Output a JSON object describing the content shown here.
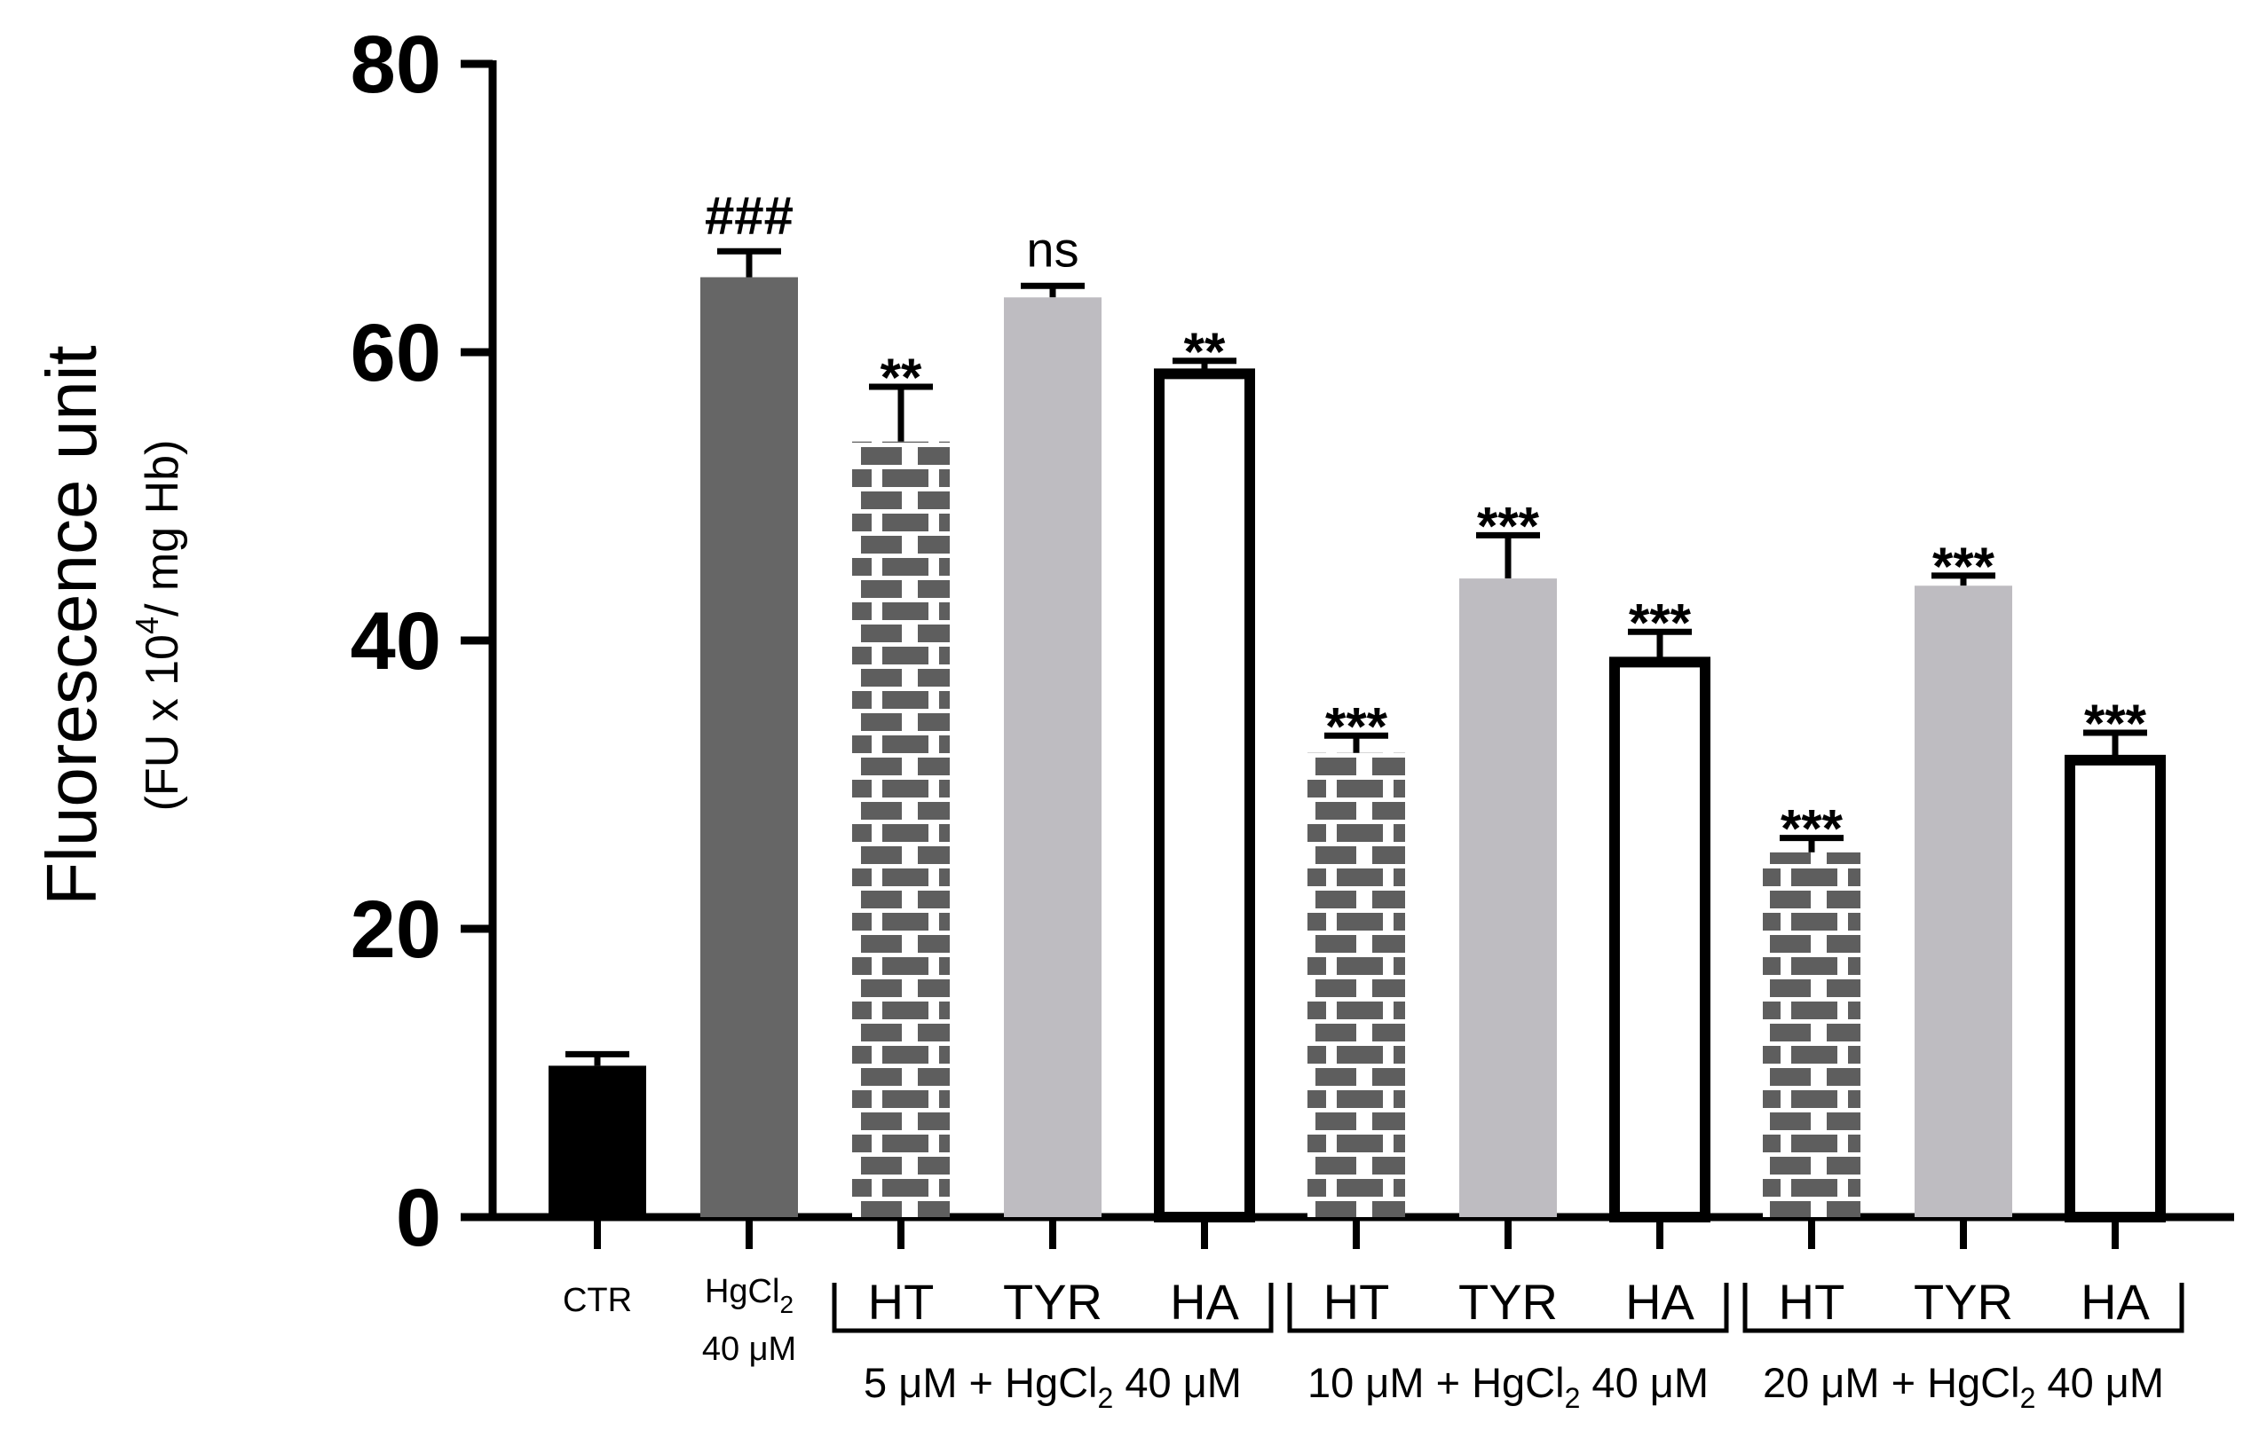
{
  "chart_data": {
    "type": "bar",
    "title": "",
    "ylabel": "Fluorescence unit",
    "ylabel_sub": {
      "prefix": "(FU x 10",
      "exp": "4",
      "suffix": "/ mg Hb)"
    },
    "ylim": [
      0,
      80
    ],
    "yticks": [
      0,
      20,
      40,
      60,
      80
    ],
    "bars": [
      {
        "label": "CTR",
        "value": 10.5,
        "error": 0.8,
        "significance": "",
        "style": "black"
      },
      {
        "label": "HgCl",
        "label_sub": "2",
        "label_line2": "40 μM",
        "value": 65.2,
        "error": 1.8,
        "significance": "###",
        "style": "darkgray"
      },
      {
        "label": "HT",
        "value": 53.8,
        "error": 3.8,
        "significance": "**",
        "style": "brick"
      },
      {
        "label": "TYR",
        "value": 63.8,
        "error": 0.8,
        "significance": "ns",
        "style": "lightgray"
      },
      {
        "label": "HA",
        "value": 58.5,
        "error": 0.9,
        "significance": "**",
        "style": "open"
      },
      {
        "label": "HT",
        "value": 32.2,
        "error": 1.2,
        "significance": "***",
        "style": "brick"
      },
      {
        "label": "TYR",
        "value": 44.3,
        "error": 3.0,
        "significance": "***",
        "style": "lightgray"
      },
      {
        "label": "HA",
        "value": 38.5,
        "error": 2.1,
        "significance": "***",
        "style": "open"
      },
      {
        "label": "HT",
        "value": 25.3,
        "error": 1.0,
        "significance": "***",
        "style": "brick"
      },
      {
        "label": "TYR",
        "value": 43.8,
        "error": 0.7,
        "significance": "***",
        "style": "lightgray"
      },
      {
        "label": "HA",
        "value": 31.7,
        "error": 1.9,
        "significance": "***",
        "style": "open"
      }
    ],
    "groups": [
      {
        "prefix": "5 μM + HgCl",
        "sub": "2",
        "suffix": " 40 μM",
        "bars": [
          2,
          3,
          4
        ]
      },
      {
        "prefix": "10 μM + HgCl",
        "sub": "2",
        "suffix": " 40 μM",
        "bars": [
          5,
          6,
          7
        ]
      },
      {
        "prefix": "20 μM + HgCl",
        "sub": "2",
        "suffix": " 40 μM",
        "bars": [
          8,
          9,
          10
        ]
      }
    ],
    "colors": {
      "black": "#000000",
      "darkgray": "#666666",
      "lightgray": "#bebcc1",
      "brick": "#5e5e5e",
      "axis": "#000000"
    }
  }
}
